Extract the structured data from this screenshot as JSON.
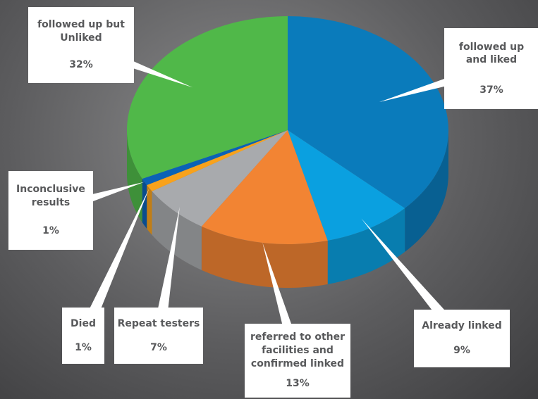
{
  "chart_data": {
    "type": "pie",
    "categories": [
      "followed up and liked",
      "Already linked",
      "referred to other facilities and confirmed linked",
      "Repeat testers",
      "Died",
      "Inconclusive results",
      "followed up but Unliked"
    ],
    "values": [
      37,
      9,
      13,
      7,
      1,
      1,
      32
    ],
    "value_labels": [
      "37%",
      "9%",
      "13%",
      "7%",
      "1%",
      "1%",
      "32%"
    ],
    "colors": [
      "#0a7bbb",
      "#0aa0e0",
      "#f28433",
      "#a8aaad",
      "#f8a21c",
      "#0b62b6",
      "#50b849"
    ],
    "three_d": true
  }
}
